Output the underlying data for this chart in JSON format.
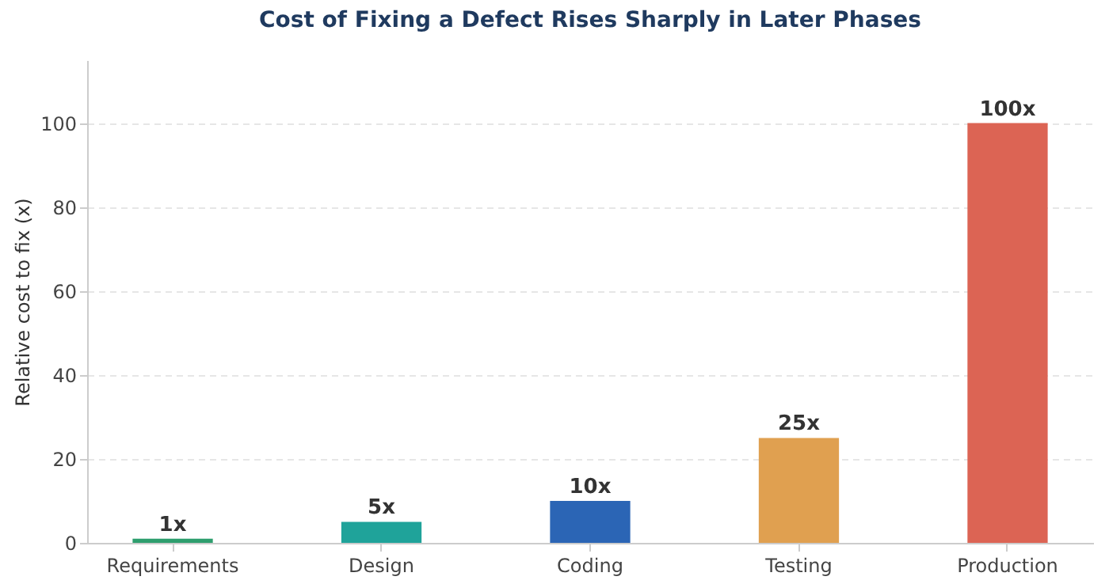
{
  "chart_data": {
    "type": "bar",
    "title": "Cost of Fixing a Defect Rises Sharply in Later Phases",
    "ylabel": "Relative cost to fix (x)",
    "categories": [
      "Requirements",
      "Design",
      "Coding",
      "Testing",
      "Production"
    ],
    "values": [
      1,
      5,
      10,
      25,
      100
    ],
    "colors": [
      "#2e9e6e",
      "#1fa39a",
      "#2b65b5",
      "#e0a050",
      "#dc6454"
    ],
    "value_labels": [
      "1x",
      "5x",
      "10x",
      "25x",
      "100x"
    ],
    "ylim": [
      0,
      115
    ],
    "yticks": [
      0,
      20,
      40,
      60,
      80,
      100
    ],
    "grid": "y",
    "legend": false
  }
}
